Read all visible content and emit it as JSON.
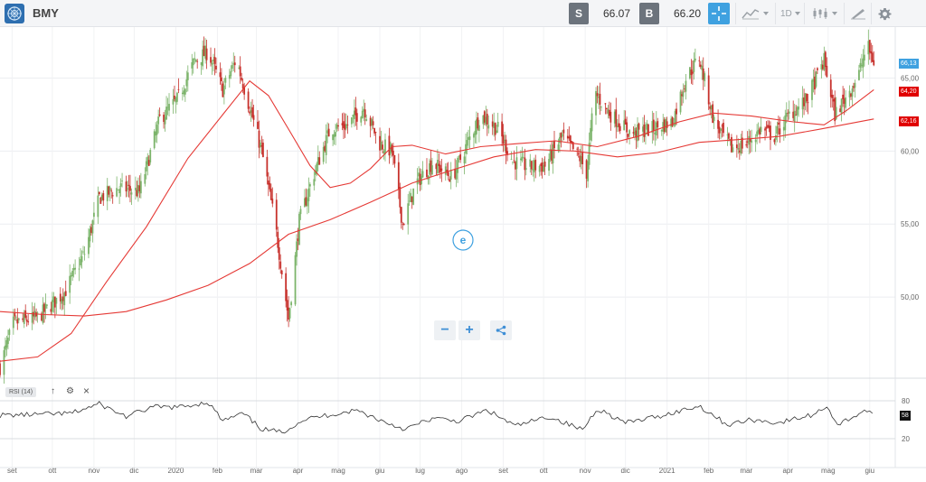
{
  "header": {
    "symbol": "BMY",
    "sell_label": "S",
    "sell_value": "66.07",
    "buy_label": "B",
    "buy_value": "66.20",
    "timeframe": "1D"
  },
  "icons": [
    "logo-icon",
    "crosshair-icon",
    "line-chart-icon",
    "candles-icon",
    "draw-icon",
    "gear-icon",
    "etoro-logo-icon",
    "share-icon"
  ],
  "colors": {
    "up": "#7cb46b",
    "down": "#c7312c",
    "ma": "#e53935",
    "price_badge": "#3fa1e0",
    "ma_badge": "#e00000"
  },
  "zoom": {
    "minus": "−",
    "plus": "+"
  },
  "rsi": {
    "label": "RSI (14)",
    "current": "58",
    "upper": "80",
    "lower": "20",
    "controls": {
      "up": "↑",
      "settings": "⚙",
      "close": "×"
    }
  },
  "chart_data": {
    "type": "candlestick",
    "title": "",
    "y_ticks": [
      "50,00",
      "55,00",
      "60,00",
      "65,00"
    ],
    "ylim": [
      44.5,
      68.0
    ],
    "x_ticks": [
      "set",
      "ott",
      "nov",
      "dic",
      "2020",
      "feb",
      "mar",
      "apr",
      "mag",
      "giu",
      "lug",
      "ago",
      "set",
      "ott",
      "nov",
      "dic",
      "2021",
      "feb",
      "mar",
      "apr",
      "mag",
      "giu"
    ],
    "badges": {
      "last_price": "66,13",
      "ma_short": "64,20",
      "ma_long": "62,16"
    },
    "close_points": [
      {
        "date": "2019-08-23",
        "v": 45.2
      },
      {
        "date": "2019-09-02",
        "v": 48.2
      },
      {
        "date": "2019-09-20",
        "v": 48.6
      },
      {
        "date": "2019-10-10",
        "v": 50.3
      },
      {
        "date": "2019-10-25",
        "v": 53.0
      },
      {
        "date": "2019-11-05",
        "v": 56.8
      },
      {
        "date": "2019-11-20",
        "v": 57.5
      },
      {
        "date": "2019-12-05",
        "v": 57.2
      },
      {
        "date": "2019-12-20",
        "v": 62.2
      },
      {
        "date": "2020-01-02",
        "v": 63.5
      },
      {
        "date": "2020-01-15",
        "v": 66.2
      },
      {
        "date": "2020-01-25",
        "v": 66.8
      },
      {
        "date": "2020-02-05",
        "v": 64.2
      },
      {
        "date": "2020-02-15",
        "v": 66.3
      },
      {
        "date": "2020-02-25",
        "v": 63.0
      },
      {
        "date": "2020-03-05",
        "v": 60.0
      },
      {
        "date": "2020-03-15",
        "v": 55.0
      },
      {
        "date": "2020-03-25",
        "v": 48.5
      },
      {
        "date": "2020-04-02",
        "v": 55.2
      },
      {
        "date": "2020-04-12",
        "v": 58.2
      },
      {
        "date": "2020-04-25",
        "v": 61.5
      },
      {
        "date": "2020-05-08",
        "v": 61.8
      },
      {
        "date": "2020-05-20",
        "v": 63.0
      },
      {
        "date": "2020-06-01",
        "v": 60.5
      },
      {
        "date": "2020-06-10",
        "v": 60.0
      },
      {
        "date": "2020-06-18",
        "v": 55.0
      },
      {
        "date": "2020-06-28",
        "v": 57.8
      },
      {
        "date": "2020-07-10",
        "v": 59.2
      },
      {
        "date": "2020-07-25",
        "v": 58.2
      },
      {
        "date": "2020-08-05",
        "v": 60.5
      },
      {
        "date": "2020-08-15",
        "v": 62.5
      },
      {
        "date": "2020-08-28",
        "v": 61.5
      },
      {
        "date": "2020-09-08",
        "v": 59.3
      },
      {
        "date": "2020-09-20",
        "v": 58.9
      },
      {
        "date": "2020-10-02",
        "v": 59.0
      },
      {
        "date": "2020-10-15",
        "v": 61.0
      },
      {
        "date": "2020-10-28",
        "v": 59.5
      },
      {
        "date": "2020-11-02",
        "v": 58.5
      },
      {
        "date": "2020-11-08",
        "v": 64.0
      },
      {
        "date": "2020-11-20",
        "v": 62.5
      },
      {
        "date": "2020-12-05",
        "v": 61.2
      },
      {
        "date": "2020-12-20",
        "v": 61.5
      },
      {
        "date": "2021-01-05",
        "v": 62.0
      },
      {
        "date": "2021-01-15",
        "v": 65.0
      },
      {
        "date": "2021-01-25",
        "v": 66.4
      },
      {
        "date": "2021-02-05",
        "v": 62.0
      },
      {
        "date": "2021-02-18",
        "v": 60.2
      },
      {
        "date": "2021-03-01",
        "v": 60.5
      },
      {
        "date": "2021-03-12",
        "v": 61.5
      },
      {
        "date": "2021-03-22",
        "v": 61.0
      },
      {
        "date": "2021-04-02",
        "v": 62.5
      },
      {
        "date": "2021-04-15",
        "v": 63.5
      },
      {
        "date": "2021-04-28",
        "v": 66.2
      },
      {
        "date": "2021-05-06",
        "v": 62.5
      },
      {
        "date": "2021-05-16",
        "v": 64.0
      },
      {
        "date": "2021-05-23",
        "v": 65.0
      },
      {
        "date": "2021-05-30",
        "v": 67.3
      },
      {
        "date": "2021-06-04",
        "v": 66.1
      }
    ],
    "ma_short": [
      {
        "date": "2019-08-23",
        "v": 45.6
      },
      {
        "date": "2019-09-20",
        "v": 45.9
      },
      {
        "date": "2019-10-15",
        "v": 47.5
      },
      {
        "date": "2019-11-10",
        "v": 51.0
      },
      {
        "date": "2019-12-10",
        "v": 54.8
      },
      {
        "date": "2020-01-10",
        "v": 59.5
      },
      {
        "date": "2020-02-05",
        "v": 62.5
      },
      {
        "date": "2020-02-25",
        "v": 64.8
      },
      {
        "date": "2020-03-10",
        "v": 63.8
      },
      {
        "date": "2020-03-25",
        "v": 61.5
      },
      {
        "date": "2020-04-10",
        "v": 59.0
      },
      {
        "date": "2020-04-25",
        "v": 57.5
      },
      {
        "date": "2020-05-10",
        "v": 57.8
      },
      {
        "date": "2020-05-25",
        "v": 58.8
      },
      {
        "date": "2020-06-10",
        "v": 60.3
      },
      {
        "date": "2020-06-25",
        "v": 60.4
      },
      {
        "date": "2020-07-20",
        "v": 59.8
      },
      {
        "date": "2020-08-15",
        "v": 60.3
      },
      {
        "date": "2020-09-10",
        "v": 60.5
      },
      {
        "date": "2020-10-10",
        "v": 60.7
      },
      {
        "date": "2020-11-10",
        "v": 60.3
      },
      {
        "date": "2020-12-10",
        "v": 61.0
      },
      {
        "date": "2021-01-10",
        "v": 62.0
      },
      {
        "date": "2021-02-05",
        "v": 62.6
      },
      {
        "date": "2021-03-05",
        "v": 62.4
      },
      {
        "date": "2021-04-05",
        "v": 62.0
      },
      {
        "date": "2021-04-28",
        "v": 61.8
      },
      {
        "date": "2021-05-15",
        "v": 62.8
      },
      {
        "date": "2021-06-04",
        "v": 64.2
      }
    ],
    "ma_long": [
      {
        "date": "2019-08-23",
        "v": 49.0
      },
      {
        "date": "2019-09-25",
        "v": 48.8
      },
      {
        "date": "2019-10-25",
        "v": 48.7
      },
      {
        "date": "2019-11-25",
        "v": 49.0
      },
      {
        "date": "2019-12-25",
        "v": 49.8
      },
      {
        "date": "2020-01-25",
        "v": 50.8
      },
      {
        "date": "2020-02-25",
        "v": 52.3
      },
      {
        "date": "2020-03-25",
        "v": 54.3
      },
      {
        "date": "2020-04-25",
        "v": 55.3
      },
      {
        "date": "2020-05-25",
        "v": 56.5
      },
      {
        "date": "2020-06-25",
        "v": 57.8
      },
      {
        "date": "2020-07-25",
        "v": 58.7
      },
      {
        "date": "2020-08-25",
        "v": 59.6
      },
      {
        "date": "2020-09-25",
        "v": 60.1
      },
      {
        "date": "2020-10-25",
        "v": 60.0
      },
      {
        "date": "2020-11-25",
        "v": 59.6
      },
      {
        "date": "2020-12-25",
        "v": 59.9
      },
      {
        "date": "2021-01-25",
        "v": 60.6
      },
      {
        "date": "2021-02-25",
        "v": 60.8
      },
      {
        "date": "2021-03-25",
        "v": 61.0
      },
      {
        "date": "2021-04-25",
        "v": 61.5
      },
      {
        "date": "2021-06-04",
        "v": 62.2
      }
    ],
    "rsi_values": [
      {
        "date": "2019-08-23",
        "v": 57
      },
      {
        "date": "2019-09-15",
        "v": 58
      },
      {
        "date": "2019-10-15",
        "v": 60
      },
      {
        "date": "2019-11-05",
        "v": 75
      },
      {
        "date": "2019-11-25",
        "v": 55
      },
      {
        "date": "2019-12-15",
        "v": 70
      },
      {
        "date": "2020-01-05",
        "v": 70
      },
      {
        "date": "2020-01-25",
        "v": 78
      },
      {
        "date": "2020-02-05",
        "v": 48
      },
      {
        "date": "2020-02-20",
        "v": 60
      },
      {
        "date": "2020-03-05",
        "v": 35
      },
      {
        "date": "2020-03-20",
        "v": 30
      },
      {
        "date": "2020-04-05",
        "v": 50
      },
      {
        "date": "2020-04-25",
        "v": 58
      },
      {
        "date": "2020-05-15",
        "v": 65
      },
      {
        "date": "2020-06-05",
        "v": 46
      },
      {
        "date": "2020-06-20",
        "v": 35
      },
      {
        "date": "2020-07-10",
        "v": 52
      },
      {
        "date": "2020-07-30",
        "v": 48
      },
      {
        "date": "2020-08-20",
        "v": 65
      },
      {
        "date": "2020-09-10",
        "v": 40
      },
      {
        "date": "2020-10-05",
        "v": 55
      },
      {
        "date": "2020-10-30",
        "v": 34
      },
      {
        "date": "2020-11-10",
        "v": 68
      },
      {
        "date": "2020-12-01",
        "v": 45
      },
      {
        "date": "2020-12-25",
        "v": 55
      },
      {
        "date": "2021-01-25",
        "v": 72
      },
      {
        "date": "2021-02-15",
        "v": 42
      },
      {
        "date": "2021-03-05",
        "v": 50
      },
      {
        "date": "2021-03-25",
        "v": 45
      },
      {
        "date": "2021-04-20",
        "v": 58
      },
      {
        "date": "2021-04-30",
        "v": 72
      },
      {
        "date": "2021-05-08",
        "v": 42
      },
      {
        "date": "2021-05-20",
        "v": 55
      },
      {
        "date": "2021-05-28",
        "v": 65
      },
      {
        "date": "2021-06-04",
        "v": 58
      }
    ],
    "date_range": [
      "2019-08-23",
      "2021-06-20"
    ]
  }
}
